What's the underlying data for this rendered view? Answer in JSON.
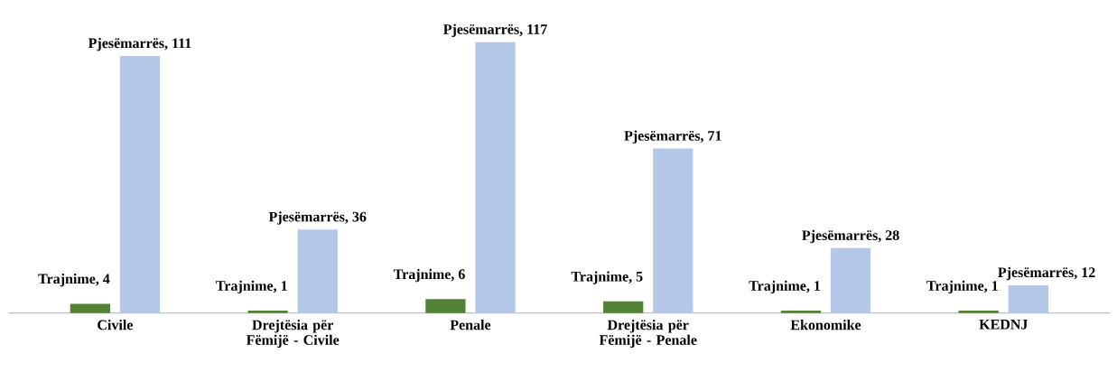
{
  "chart_data": {
    "type": "bar",
    "categories": [
      "Civile",
      "Drejtësia për Fëmijë - Civile",
      "Penale",
      "Drejtësia për Fëmijë - Penale",
      "Ekonomike",
      "KEDNJ"
    ],
    "series": [
      {
        "color": "#548235",
        "values": [
          4,
          1,
          6,
          5,
          1,
          1
        ],
        "value_labels": [
          "Trajnime, 4",
          "Trajnime, 1",
          "Trajnime, 6",
          "Trajnime, 5",
          "Trajnime, 1",
          "Trajnime, 1"
        ]
      },
      {
        "color": "#b4c7e7",
        "values": [
          111,
          36,
          117,
          71,
          28,
          12
        ],
        "value_labels": [
          "Pjesëmarrës, 111",
          "Pjesëmarrës, 36",
          "Pjesëmarrës, 117",
          "Pjesëmarrës, 71",
          "Pjesëmarrës, 28",
          "Pjesëmarrës, 12"
        ]
      }
    ]
  }
}
